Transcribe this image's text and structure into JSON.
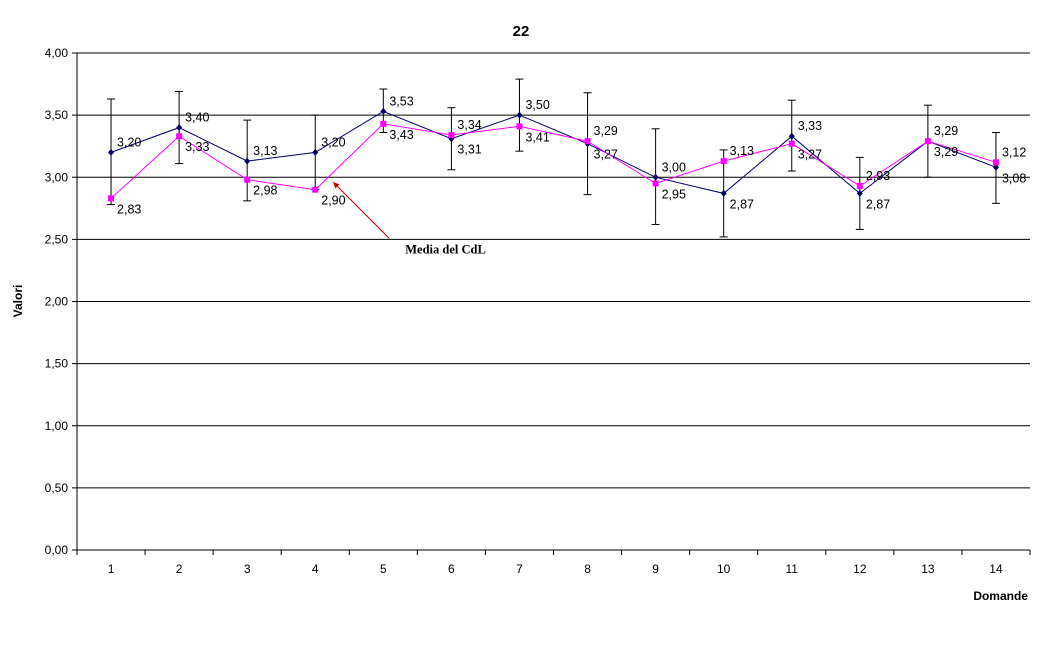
{
  "chart_data": {
    "type": "line",
    "title": "22",
    "xlabel": "Domande",
    "ylabel": "Valori",
    "categories": [
      "1",
      "2",
      "3",
      "4",
      "5",
      "6",
      "7",
      "8",
      "9",
      "10",
      "11",
      "12",
      "13",
      "14"
    ],
    "ylim": [
      0,
      4
    ],
    "yticks": [
      "0,00",
      "0,50",
      "1,00",
      "1,50",
      "2,00",
      "2,50",
      "3,00",
      "3,50",
      "4,00"
    ],
    "grid": true,
    "series": [
      {
        "name": "",
        "color": "#000066",
        "marker": "diamond",
        "values": [
          3.2,
          3.4,
          3.13,
          3.2,
          3.53,
          3.31,
          3.5,
          3.27,
          3.0,
          2.87,
          3.33,
          2.87,
          3.29,
          3.08
        ],
        "labels": [
          "3,20",
          "3,40",
          "3,13",
          "3,20",
          "3,53",
          "3,31",
          "3,50",
          "3,27",
          "3,00",
          "2,87",
          "3,33",
          "2,87",
          "3,29",
          "3,08"
        ],
        "error_low": [
          2.78,
          3.11,
          2.81,
          2.9,
          3.36,
          3.06,
          3.21,
          2.86,
          2.62,
          2.52,
          3.05,
          2.58,
          3.0,
          2.79
        ],
        "error_high": [
          3.63,
          3.69,
          3.46,
          3.5,
          3.71,
          3.56,
          3.79,
          3.68,
          3.39,
          3.22,
          3.62,
          3.16,
          3.58,
          3.36
        ]
      },
      {
        "name": "",
        "color": "#ff00ff",
        "marker": "square",
        "values": [
          2.83,
          3.33,
          2.98,
          2.9,
          3.43,
          3.34,
          3.41,
          3.29,
          2.95,
          3.13,
          3.27,
          2.93,
          3.29,
          3.12
        ],
        "labels": [
          "2,83",
          "3,33",
          "2,98",
          "2,90",
          "3,43",
          "3,34",
          "3,41",
          "3,29",
          "2,95",
          "3,13",
          "3,27",
          "2,93",
          "3,29",
          "3,12"
        ]
      }
    ],
    "annotations": [
      {
        "text": "Media del CdL",
        "color": "#cc0000",
        "points_to_category": "4",
        "points_to_value": 2.96
      }
    ]
  }
}
